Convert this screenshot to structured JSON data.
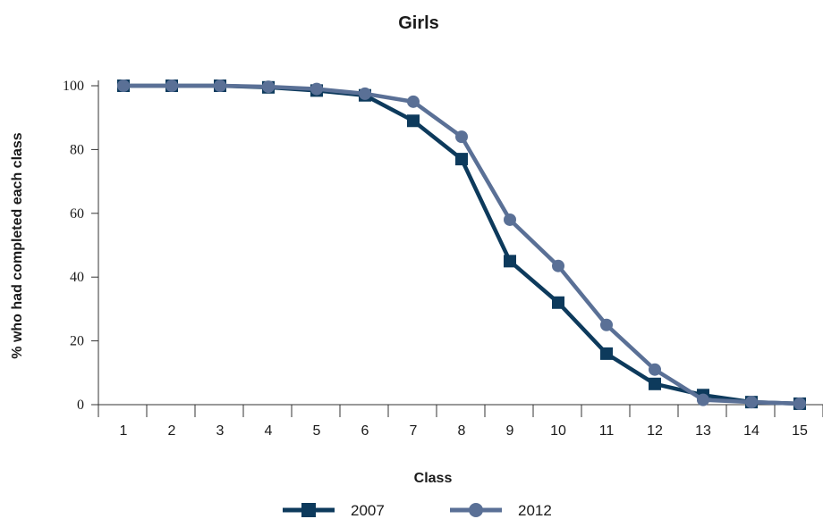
{
  "chart_data": {
    "type": "line",
    "title": "Girls",
    "xlabel": "Class",
    "ylabel": "% who had completed each class",
    "x": [
      1,
      2,
      3,
      4,
      5,
      6,
      7,
      8,
      9,
      10,
      11,
      12,
      13,
      14,
      15
    ],
    "ylim": [
      0,
      100
    ],
    "yticks": [
      0,
      20,
      40,
      60,
      80,
      100
    ],
    "grid": false,
    "legend_position": "bottom",
    "series": [
      {
        "name": "2007",
        "marker": "square",
        "color": "#0d3a5c",
        "values": [
          100,
          100,
          100,
          99.5,
          98.5,
          97,
          89,
          77,
          45,
          32,
          16,
          6.5,
          3,
          0.8,
          0.3
        ]
      },
      {
        "name": "2012",
        "marker": "circle",
        "color": "#5a7096",
        "values": [
          100,
          100,
          100,
          99.7,
          99,
          97.5,
          95,
          84,
          58,
          43.5,
          25,
          11,
          1.5,
          0.8,
          0.3
        ]
      }
    ]
  }
}
